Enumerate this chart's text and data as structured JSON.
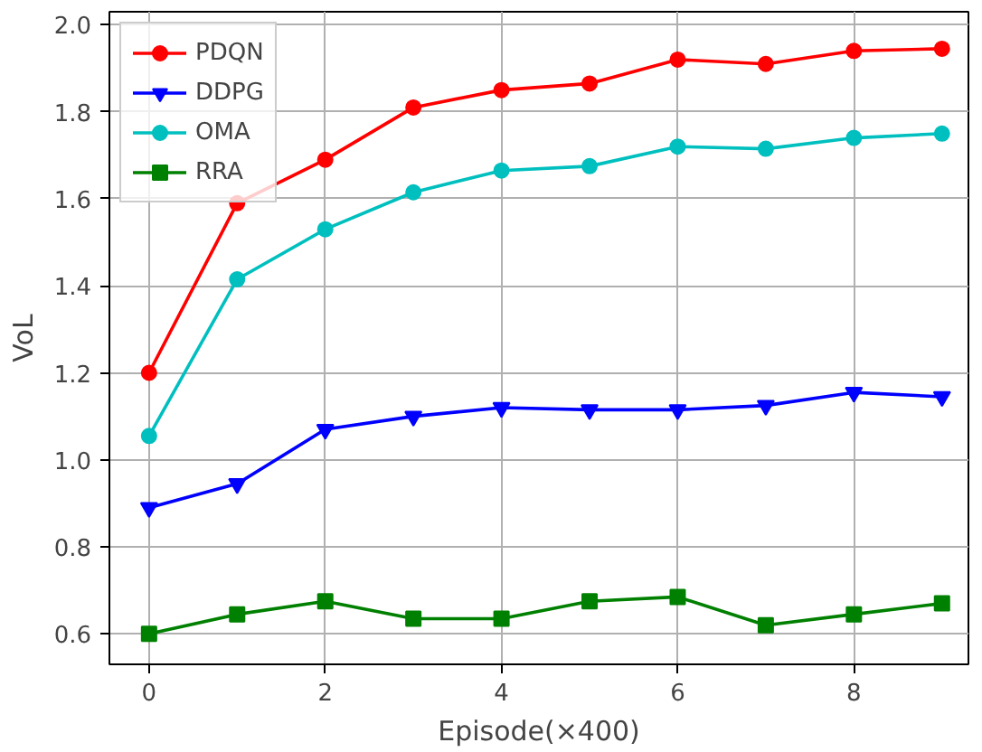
{
  "chart_data": {
    "type": "line",
    "xlabel": "Episode(×400)",
    "ylabel": "VoL",
    "x": [
      0,
      1,
      2,
      3,
      4,
      5,
      6,
      7,
      8,
      9
    ],
    "series": [
      {
        "name": "PDQN",
        "color": "#ff0000",
        "marker": "circle",
        "values": [
          1.2,
          1.59,
          1.69,
          1.81,
          1.85,
          1.865,
          1.92,
          1.91,
          1.94,
          1.945
        ]
      },
      {
        "name": "DDPG",
        "color": "#0000ff",
        "marker": "triangle",
        "values": [
          0.89,
          0.945,
          1.07,
          1.1,
          1.12,
          1.115,
          1.115,
          1.125,
          1.155,
          1.145
        ]
      },
      {
        "name": "OMA",
        "color": "#00bfbf",
        "marker": "circle",
        "values": [
          1.055,
          1.415,
          1.53,
          1.615,
          1.665,
          1.675,
          1.72,
          1.715,
          1.74,
          1.75
        ]
      },
      {
        "name": "RRA",
        "color": "#008000",
        "marker": "square",
        "values": [
          0.6,
          0.645,
          0.675,
          0.635,
          0.635,
          0.675,
          0.685,
          0.62,
          0.645,
          0.67
        ]
      }
    ],
    "xlim": [
      -0.45,
      9.3
    ],
    "ylim": [
      0.53,
      2.03
    ],
    "xticks": [
      0,
      2,
      4,
      6,
      8
    ],
    "yticks": [
      0.6,
      0.8,
      {
        "value": 1,
        "label": "1.0"
      },
      1.2,
      1.4,
      1.6,
      1.8,
      {
        "value": 2,
        "label": "2.0"
      }
    ],
    "grid": true,
    "legend": "top left"
  }
}
